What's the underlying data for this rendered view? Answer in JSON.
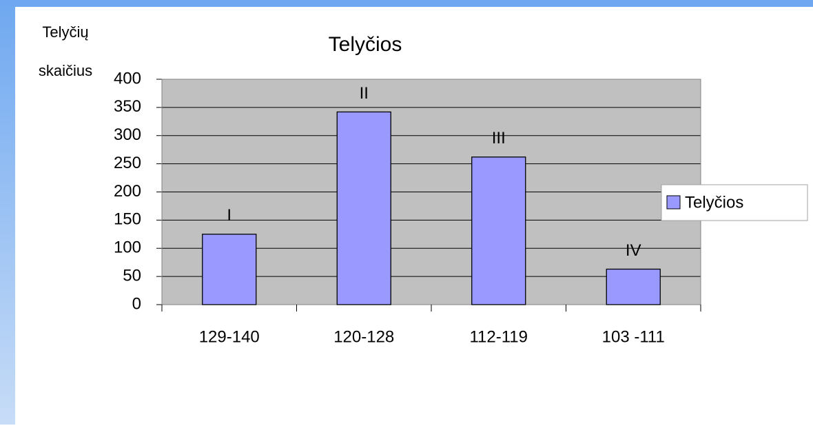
{
  "chart_data": {
    "type": "bar",
    "title": "Telyčios",
    "ylabel": [
      "Telyčių",
      "skaičius"
    ],
    "categories": [
      "129-140",
      "120-128",
      "112-119",
      "103 -111"
    ],
    "series": [
      {
        "name": "Telyčios",
        "color": "#9999ff",
        "values": [
          125,
          342,
          262,
          63
        ]
      }
    ],
    "bar_labels": [
      "I",
      "II",
      "III",
      "IV"
    ],
    "ylim": [
      0,
      400
    ],
    "yticks": [
      0,
      50,
      100,
      150,
      200,
      250,
      300,
      350,
      400
    ],
    "grid": true,
    "legend": "right"
  }
}
